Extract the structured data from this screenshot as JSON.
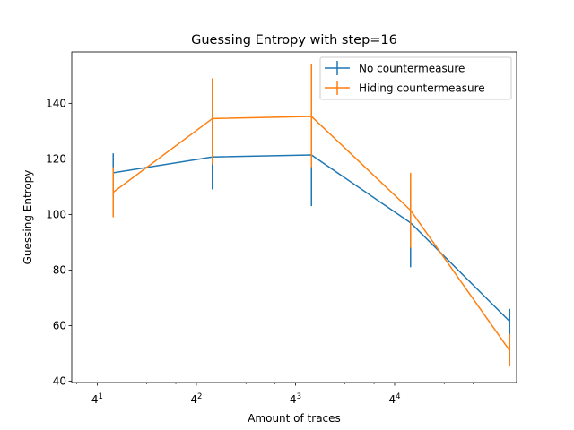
{
  "chart_data": {
    "type": "line",
    "title": "Guessing Entropy with step=16",
    "xlabel": "Amount of traces",
    "ylabel": "Guessing Entropy",
    "x_scale": "log4",
    "xlim": [
      2.8,
      1410
    ],
    "ylim": [
      39.5,
      158.5
    ],
    "x_ticks": [
      {
        "base": "4",
        "exp": "1",
        "value": 4
      },
      {
        "base": "4",
        "exp": "2",
        "value": 16
      },
      {
        "base": "4",
        "exp": "3",
        "value": 64
      },
      {
        "base": "4",
        "exp": "4",
        "value": 256
      }
    ],
    "y_ticks": [
      40,
      60,
      80,
      100,
      120,
      140
    ],
    "legend_position": "top-right",
    "grid": false,
    "x": [
      5,
      20,
      80,
      320,
      1280
    ],
    "series": [
      {
        "name": "No countermeasure",
        "color": "#1f77b4",
        "values": [
          115,
          120.7,
          121.4,
          97,
          61.5
        ],
        "error_low": [
          106,
          109,
          103,
          81,
          56
        ],
        "error_high": [
          122,
          130,
          139,
          110,
          66
        ]
      },
      {
        "name": "Hiding countermeasure",
        "color": "#ff7f0e",
        "values": [
          108,
          134.5,
          135.3,
          101.5,
          51
        ],
        "error_low": [
          99,
          118,
          117,
          88,
          45.5
        ],
        "error_high": [
          117,
          149,
          154,
          115,
          57
        ]
      }
    ]
  }
}
